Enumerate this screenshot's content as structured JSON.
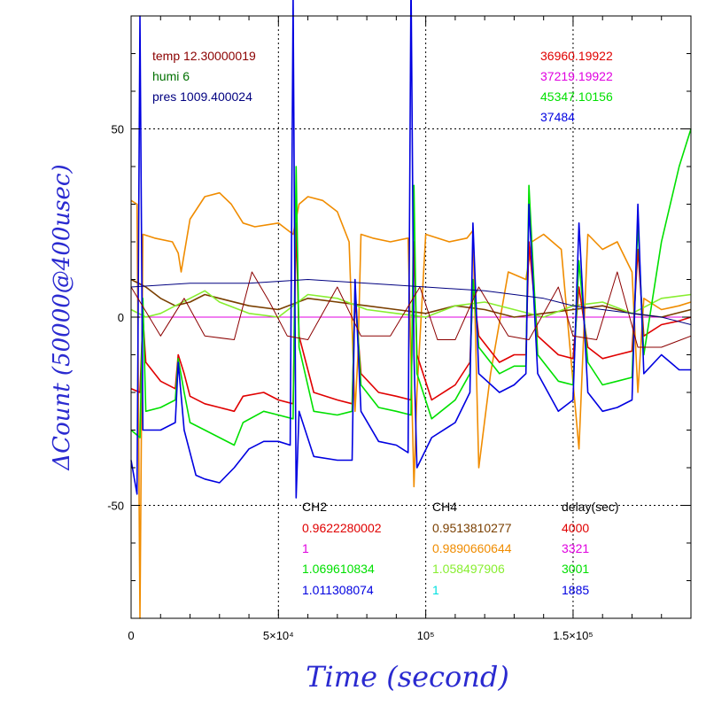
{
  "colors": {
    "ch2_red": "#e00000",
    "ch2_magenta": "#e000e0",
    "ch2_green": "#00e000",
    "ch2_blue": "#0000e0",
    "ch4_brown": "#7a3f00",
    "ch4_orange": "#f08c00",
    "ch4_lime": "#88ee30",
    "ch4_cyan": "#00e0e0",
    "temp": "#8b0000",
    "humi": "#007000",
    "pres": "#000080",
    "axis_label": "#2a2ad0"
  },
  "chart_data": {
    "type": "line",
    "xlabel": "Time (second)",
    "ylabel": "ΔCount (50000@400usec)",
    "xlim": [
      0,
      190000
    ],
    "ylim": [
      -80,
      80
    ],
    "x_ticks": [
      {
        "value": 0,
        "label": "0"
      },
      {
        "value": 50000,
        "label": "5×10⁴"
      },
      {
        "value": 100000,
        "label": "10⁵"
      },
      {
        "value": 150000,
        "label": "1.5×10⁵"
      }
    ],
    "y_ticks": [
      {
        "value": -50,
        "label": "-50"
      },
      {
        "value": 0,
        "label": "0"
      },
      {
        "value": 50,
        "label": "50"
      }
    ],
    "grid": "dotted at labeled ticks",
    "env_annotations": {
      "temp": "temp 12.30000019",
      "humi": "humi 6",
      "pres": "pres 1009.400024"
    },
    "count_annotations": [
      "36960.19922",
      "37219.19922",
      "45347.10156",
      "37484"
    ],
    "table": {
      "headers": [
        "CH2",
        "CH4",
        "delay(sec)"
      ],
      "ch2": [
        "0.9622280002",
        "1",
        "1.069610834",
        "1.011308074"
      ],
      "ch4": [
        "0.9513810277",
        "0.9890660644",
        "1.058497906",
        "1"
      ],
      "delay": [
        "4000",
        "3321",
        "3001",
        "1885"
      ]
    },
    "series": [
      {
        "color": "ch2_magenta",
        "x": [
          0,
          190000
        ],
        "y": [
          0,
          0
        ]
      },
      {
        "color": "ch4_orange",
        "x": [
          0,
          2000,
          3000,
          4000,
          8000,
          14000,
          16000,
          17000,
          20000,
          25000,
          30000,
          34000,
          38000,
          42000,
          50000,
          55000,
          57000,
          60000,
          65000,
          70000,
          74000,
          76000,
          77000,
          78000,
          82000,
          88000,
          94000,
          96000,
          97000,
          100000,
          108000,
          114000,
          116000,
          118000,
          122000,
          128000,
          134000,
          136000,
          140000,
          146000,
          152000,
          155000,
          160000,
          165000,
          170000,
          172000,
          174000,
          180000,
          186000,
          190000
        ],
        "y": [
          31,
          30,
          -80,
          22,
          21,
          20,
          17,
          12,
          26,
          32,
          33,
          30,
          25,
          24,
          25,
          22,
          30,
          32,
          31,
          28,
          20,
          -25,
          -10,
          22,
          21,
          20,
          21,
          -45,
          -20,
          22,
          20,
          21,
          23,
          -40,
          -15,
          12,
          10,
          20,
          22,
          18,
          -35,
          22,
          18,
          20,
          12,
          -20,
          5,
          2,
          3,
          4
        ]
      },
      {
        "color": "ch4_brown",
        "x": [
          0,
          5000,
          10000,
          15000,
          20000,
          25000,
          30000,
          40000,
          50000,
          60000,
          70000,
          80000,
          90000,
          100000,
          110000,
          120000,
          130000,
          140000,
          150000,
          160000,
          170000,
          180000,
          190000
        ],
        "y": [
          10,
          8,
          5,
          3,
          4,
          6,
          5,
          3,
          2,
          5,
          4,
          3,
          2,
          1,
          3,
          2,
          0,
          1,
          2,
          3,
          1,
          0,
          2
        ]
      },
      {
        "color": "ch4_lime",
        "x": [
          0,
          5000,
          10000,
          15000,
          20000,
          25000,
          30000,
          40000,
          50000,
          60000,
          70000,
          80000,
          90000,
          100000,
          110000,
          120000,
          130000,
          140000,
          150000,
          160000,
          170000,
          180000,
          190000
        ],
        "y": [
          2,
          0,
          1,
          3,
          5,
          7,
          4,
          1,
          0,
          6,
          5,
          2,
          1,
          0,
          3,
          4,
          2,
          0,
          3,
          4,
          1,
          5,
          6
        ]
      },
      {
        "color": "ch2_red",
        "x": [
          0,
          3000,
          4000,
          5000,
          10000,
          15000,
          16000,
          18000,
          20000,
          25000,
          30000,
          35000,
          38000,
          45000,
          50000,
          55000,
          56000,
          57000,
          62000,
          70000,
          75000,
          76000,
          78000,
          84000,
          90000,
          95000,
          96000,
          97000,
          102000,
          110000,
          115000,
          116000,
          118000,
          125000,
          130000,
          134000,
          135000,
          138000,
          145000,
          150000,
          152000,
          155000,
          160000,
          165000,
          170000,
          172000,
          174000,
          180000,
          186000,
          190000
        ],
        "y": [
          -19,
          -20,
          0,
          -12,
          -17,
          -19,
          -10,
          -15,
          -21,
          -23,
          -24,
          -25,
          -21,
          -20,
          -22,
          -23,
          25,
          -5,
          -20,
          -22,
          -23,
          5,
          -15,
          -20,
          -21,
          -22,
          20,
          -10,
          -22,
          -18,
          -12,
          8,
          -5,
          -12,
          -10,
          -10,
          20,
          -5,
          -10,
          -11,
          8,
          -8,
          -11,
          -10,
          -9,
          18,
          -5,
          -2,
          -1,
          0
        ]
      },
      {
        "color": "ch2_green",
        "x": [
          0,
          3000,
          4000,
          5000,
          10000,
          15000,
          16000,
          18000,
          20000,
          25000,
          30000,
          35000,
          38000,
          45000,
          50000,
          55000,
          56000,
          57000,
          62000,
          70000,
          75000,
          76000,
          78000,
          84000,
          90000,
          95000,
          96000,
          97000,
          102000,
          110000,
          115000,
          116000,
          118000,
          125000,
          130000,
          134000,
          135000,
          138000,
          145000,
          150000,
          152000,
          155000,
          160000,
          165000,
          170000,
          172000,
          174000,
          180000,
          186000,
          190000
        ],
        "y": [
          -30,
          -32,
          5,
          -25,
          -24,
          -22,
          -11,
          -20,
          -28,
          -30,
          -32,
          -34,
          -28,
          -25,
          -26,
          -27,
          40,
          -8,
          -25,
          -26,
          -25,
          8,
          -18,
          -24,
          -25,
          -26,
          35,
          -15,
          -27,
          -22,
          -15,
          10,
          -8,
          -15,
          -13,
          -13,
          35,
          -10,
          -17,
          -18,
          15,
          -12,
          -18,
          -17,
          -16,
          25,
          -10,
          20,
          40,
          50
        ]
      },
      {
        "color": "ch2_blue",
        "x": [
          0,
          2000,
          3000,
          4000,
          6000,
          10000,
          15000,
          16000,
          18000,
          22000,
          25000,
          30000,
          35000,
          40000,
          45000,
          50000,
          54000,
          55000,
          56000,
          57000,
          62000,
          70000,
          75000,
          76000,
          78000,
          84000,
          90000,
          94000,
          95000,
          96000,
          97000,
          102000,
          110000,
          115000,
          116000,
          118000,
          125000,
          130000,
          134000,
          135000,
          138000,
          145000,
          150000,
          152000,
          155000,
          160000,
          165000,
          170000,
          172000,
          174000,
          180000,
          186000,
          190000
        ],
        "y": [
          -38,
          -47,
          80,
          -30,
          -30,
          -30,
          -28,
          -12,
          -30,
          -42,
          -43,
          -44,
          -40,
          -35,
          -33,
          -33,
          -34,
          85,
          -48,
          -25,
          -37,
          -38,
          -38,
          10,
          -25,
          -33,
          -34,
          -36,
          90,
          -10,
          -40,
          -32,
          -28,
          -20,
          25,
          -15,
          -20,
          -18,
          -15,
          30,
          -15,
          -25,
          -22,
          25,
          -20,
          -25,
          -24,
          -22,
          30,
          -15,
          -10,
          -14,
          -14
        ]
      },
      {
        "color": "temp",
        "x": [
          0,
          10000,
          18000,
          25000,
          35000,
          41000,
          47000,
          53000,
          60000,
          70000,
          78000,
          88000,
          98000,
          104000,
          110000,
          118000,
          128000,
          135000,
          145000,
          150000,
          158000,
          165000,
          172000,
          180000,
          190000
        ],
        "y": [
          8,
          -5,
          5,
          -5,
          -6,
          12,
          4,
          -5,
          -6,
          8,
          -5,
          -5,
          8,
          -6,
          -6,
          8,
          -5,
          -6,
          8,
          -5,
          -6,
          12,
          -8,
          -8,
          -5
        ]
      },
      {
        "color": "pres",
        "x": [
          0,
          20000,
          40000,
          60000,
          80000,
          100000,
          120000,
          140000,
          150000,
          160000,
          170000,
          180000,
          190000
        ],
        "y": [
          8,
          9,
          9,
          10,
          9,
          8,
          7,
          5,
          3,
          2,
          1,
          0,
          -2
        ]
      }
    ]
  }
}
